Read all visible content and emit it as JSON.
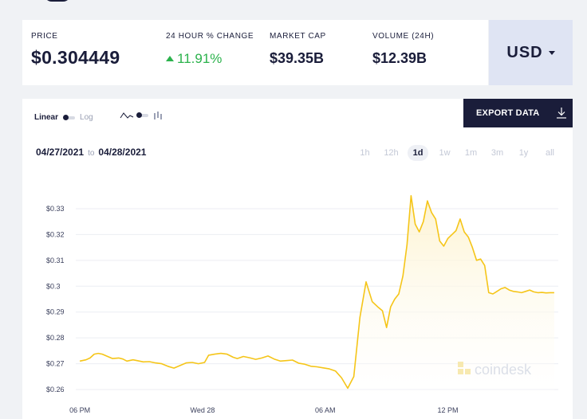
{
  "stats": {
    "price": {
      "label": "PRICE",
      "value": "$0.304449"
    },
    "change": {
      "label": "24 HOUR % CHANGE",
      "value": "11.91%"
    },
    "market_cap": {
      "label": "MARKET CAP",
      "value": "$39.35B"
    },
    "volume": {
      "label": "VOLUME (24H)",
      "value": "$12.39B"
    }
  },
  "currency": {
    "label": "USD"
  },
  "toolbar": {
    "linear_label": "Linear",
    "log_label": "Log",
    "export_label": "EXPORT DATA"
  },
  "range": {
    "from": "04/27/2021",
    "to_word": "to",
    "to": "04/28/2021"
  },
  "periods": [
    "1h",
    "12h",
    "1d",
    "1w",
    "1m",
    "3m",
    "1y",
    "all"
  ],
  "active_period": "1d",
  "watermark": "coindesk",
  "colors": {
    "line": "#f5c518",
    "fill": "#fdf3d0",
    "accent_green": "#2bb24c",
    "navy": "#1a1d3a"
  },
  "chart_data": {
    "type": "area",
    "y_ticks": [
      "$0.33",
      "$0.32",
      "$0.31",
      "$0.3",
      "$0.29",
      "$0.28",
      "$0.27",
      "$0.26"
    ],
    "y_tick_values": [
      0.33,
      0.32,
      0.31,
      0.3,
      0.29,
      0.28,
      0.27,
      0.26
    ],
    "x_ticks": [
      "06 PM",
      "Wed 28",
      "06 AM",
      "12 PM"
    ],
    "x_tick_hours": [
      0,
      6,
      12,
      18
    ],
    "ylim": [
      0.256,
      0.338
    ],
    "xlim": [
      -0.2,
      23.4
    ],
    "grid": true,
    "series": [
      {
        "x": [
          0,
          0.3,
          0.5,
          0.7,
          0.9,
          1.1,
          1.3,
          1.6,
          1.9,
          2.1,
          2.3,
          2.6,
          2.8,
          3.1,
          3.4,
          3.7,
          4,
          4.3,
          4.6,
          4.9,
          5.2,
          5.5,
          5.8,
          6.1,
          6.3,
          6.6,
          6.9,
          7.2,
          7.5,
          7.7,
          8,
          8.3,
          8.6,
          8.9,
          9.2,
          9.5,
          9.8,
          10.1,
          10.4,
          10.7,
          11,
          11.3,
          11.6,
          11.9,
          12.2,
          12.5,
          12.8,
          13.1,
          13.4,
          13.7,
          14,
          14.3,
          14.6,
          14.8,
          15,
          15.2,
          15.4,
          15.6,
          15.8,
          16,
          16.2,
          16.4,
          16.6,
          16.8,
          17,
          17.2,
          17.4,
          17.6,
          17.8,
          18,
          18.2,
          18.4,
          18.6,
          18.8,
          19,
          19.2,
          19.4,
          19.6,
          19.8,
          20,
          20.2,
          20.4,
          20.6,
          20.8,
          21,
          21.2,
          21.4,
          21.6,
          21.8,
          22,
          22.2,
          22.4,
          22.6,
          22.8,
          23,
          23.2
        ],
        "y": [
          0.271,
          0.2715,
          0.2722,
          0.2737,
          0.274,
          0.2737,
          0.273,
          0.272,
          0.2722,
          0.2718,
          0.271,
          0.2715,
          0.2712,
          0.2707,
          0.2708,
          0.2703,
          0.27,
          0.269,
          0.2683,
          0.2693,
          0.2703,
          0.2705,
          0.27,
          0.2705,
          0.2733,
          0.2737,
          0.274,
          0.2737,
          0.2725,
          0.272,
          0.2728,
          0.2723,
          0.2717,
          0.2722,
          0.273,
          0.2718,
          0.271,
          0.2712,
          0.2714,
          0.2702,
          0.2698,
          0.269,
          0.2688,
          0.2684,
          0.268,
          0.2672,
          0.2645,
          0.2605,
          0.265,
          0.288,
          0.3017,
          0.294,
          0.2918,
          0.2905,
          0.284,
          0.292,
          0.295,
          0.297,
          0.304,
          0.316,
          0.335,
          0.324,
          0.321,
          0.325,
          0.333,
          0.3285,
          0.326,
          0.3175,
          0.3155,
          0.3185,
          0.32,
          0.3215,
          0.326,
          0.321,
          0.319,
          0.315,
          0.31,
          0.3105,
          0.308,
          0.2975,
          0.297,
          0.298,
          0.299,
          0.2995,
          0.2985,
          0.298,
          0.2978,
          0.2975,
          0.298,
          0.2985,
          0.2978,
          0.2975,
          0.2976,
          0.2974,
          0.2975,
          0.2975
        ]
      }
    ]
  }
}
